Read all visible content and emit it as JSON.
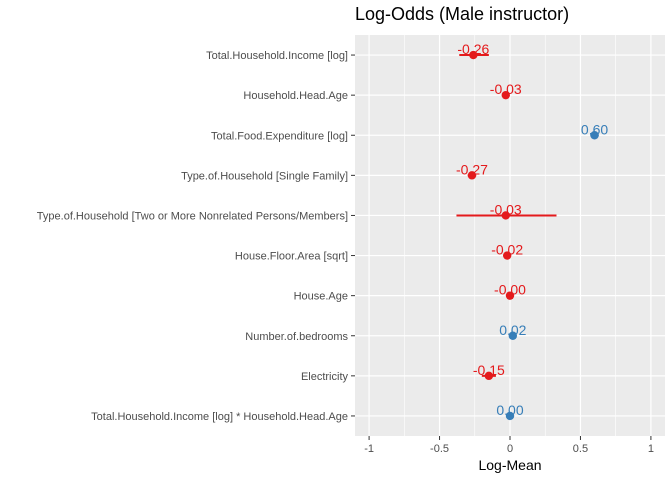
{
  "chart_data": {
    "type": "scatter",
    "title": "Log-Odds (Male instructor)",
    "xlabel": "Log-Mean",
    "ylabel": "",
    "xlim": [
      -1.1,
      1.1
    ],
    "x_ticks": [
      -1,
      -0.5,
      0,
      0.5,
      1
    ],
    "x_tick_labels": [
      "-1",
      "-0.5",
      "0",
      "0.5",
      "1"
    ],
    "grid": true,
    "legend": "none",
    "colors": {
      "positive": "#377eb8",
      "negative": "#e41a1c"
    },
    "points": [
      {
        "term": "Total.Household.Income [log]",
        "estimate": -0.26,
        "label": "-0.26",
        "ci": [
          -0.36,
          -0.15
        ],
        "sign": "negative"
      },
      {
        "term": "Household.Head.Age",
        "estimate": -0.03,
        "label": "-0.03",
        "ci": [
          -0.04,
          -0.02
        ],
        "sign": "negative"
      },
      {
        "term": "Total.Food.Expenditure [log]",
        "estimate": 0.6,
        "label": "0.60",
        "ci": [
          0.57,
          0.63
        ],
        "sign": "positive"
      },
      {
        "term": "Type.of.Household [Single Family]",
        "estimate": -0.27,
        "label": "-0.27",
        "ci": [
          -0.3,
          -0.24
        ],
        "sign": "negative"
      },
      {
        "term": "Type.of.Household [Two or More Nonrelated Persons/Members]",
        "estimate": -0.03,
        "label": "-0.03",
        "ci": [
          -0.38,
          0.33
        ],
        "sign": "negative"
      },
      {
        "term": "House.Floor.Area [sqrt]",
        "estimate": -0.02,
        "label": "-0.02",
        "ci": [
          -0.03,
          -0.01
        ],
        "sign": "negative"
      },
      {
        "term": "House.Age",
        "estimate": -0.0,
        "label": "-0.00",
        "ci": [
          -0.01,
          0.0
        ],
        "sign": "negative"
      },
      {
        "term": "Number.of.bedrooms",
        "estimate": 0.02,
        "label": "0.02",
        "ci": [
          0.01,
          0.03
        ],
        "sign": "positive"
      },
      {
        "term": "Electricity",
        "estimate": -0.15,
        "label": "-0.15",
        "ci": [
          -0.2,
          -0.1
        ],
        "sign": "negative"
      },
      {
        "term": "Total.Household.Income [log] * Household.Head.Age",
        "estimate": 0.0,
        "label": "0.00",
        "ci": [
          0.0,
          0.0
        ],
        "sign": "positive"
      }
    ]
  }
}
